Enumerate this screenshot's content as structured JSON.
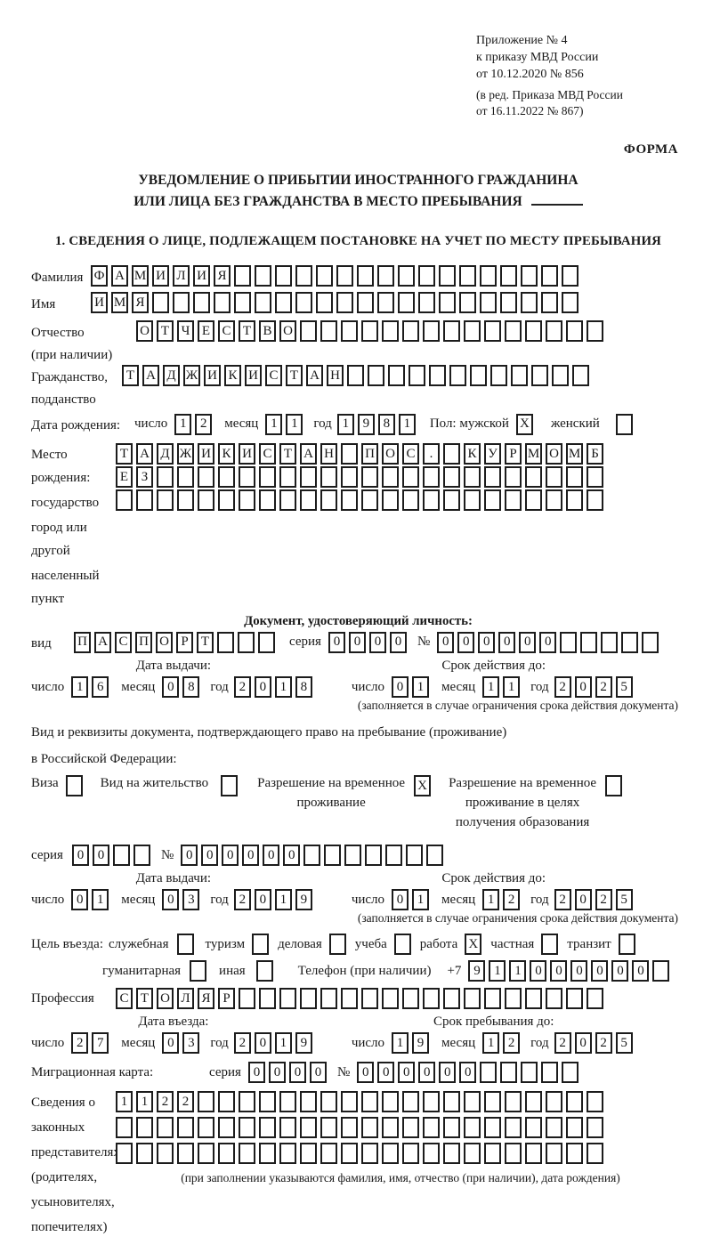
{
  "doc": {
    "annex": [
      "Приложение № 4",
      "к приказу МВД России",
      "от 10.12.2020 № 856"
    ],
    "annex_note": [
      "(в ред. Приказа МВД России",
      "от 16.11.2022 № 867)"
    ],
    "forma": "ФОРМА",
    "title1": "УВЕДОМЛЕНИЕ О ПРИБЫТИИ ИНОСТРАННОГО ГРАЖДАНИНА",
    "title2": "ИЛИ ЛИЦА БЕЗ ГРАЖДАНСТВА В МЕСТО ПРЕБЫВАНИЯ",
    "section1": "1. СВЕДЕНИЯ О ЛИЦЕ, ПОДЛЕЖАЩЕМ ПОСТАНОВКЕ НА УЧЕТ ПО МЕСТУ ПРЕБЫВАНИЯ",
    "ink_color": "#1a1a1a"
  },
  "fields": {
    "surname": {
      "label": "Фамилия",
      "cells": {
        "value": "ФАМИЛИЯ",
        "length": 24
      }
    },
    "firstname": {
      "label": "Имя",
      "cells": {
        "value": "ИМЯ",
        "length": 24
      }
    },
    "patronymic": {
      "label": "Отчество",
      "label2": "(при наличии)",
      "cells": {
        "value": "ОТЧЕСТВО",
        "length": 23
      }
    },
    "citizenship": {
      "label": "Гражданство,",
      "label2": "подданство",
      "cells": {
        "value": "ТАДЖИКИСТАН",
        "length": 23
      }
    },
    "birth_date": {
      "label": "Дата рождения:",
      "day_label": "число",
      "day": {
        "value": "12",
        "length": 2
      },
      "month_label": "месяц",
      "month": {
        "value": "11",
        "length": 2
      },
      "year_label": "год",
      "year": {
        "value": "1981",
        "length": 4
      },
      "sex_label": "Пол: мужской",
      "male": {
        "value": "X",
        "length": 1
      },
      "female_label": "женский",
      "female": {
        "value": "",
        "length": 1
      }
    },
    "birth_place": {
      "labels": [
        "Место рождения:",
        "государство",
        "город или другой",
        "населенный пункт"
      ],
      "row1": {
        "value": "ТАДЖИКИСТАН ПОС. КУРМОМБ",
        "length": 24
      },
      "row2": {
        "value": "ЕЗ",
        "length": 24
      },
      "row3": {
        "value": "",
        "length": 24
      }
    },
    "identity_doc": {
      "heading": "Документ, удостоверяющий личность:",
      "vid_label": "вид",
      "vid": {
        "value": "ПАСПОРТ",
        "length": 10
      },
      "seria_label": "серия",
      "seria": {
        "value": "0000",
        "length": 4
      },
      "num_label": "№",
      "num": {
        "value": "000000",
        "length": 11
      }
    },
    "issue1": {
      "heading": "Дата выдачи:",
      "day_label": "число",
      "day": {
        "value": "16",
        "length": 2
      },
      "month_label": "месяц",
      "month": {
        "value": "08",
        "length": 2
      },
      "year_label": "год",
      "year": {
        "value": "2018",
        "length": 4
      }
    },
    "valid1": {
      "heading": "Срок действия до:",
      "day_label": "число",
      "day": {
        "value": "01",
        "length": 2
      },
      "month_label": "месяц",
      "month": {
        "value": "11",
        "length": 2
      },
      "year_label": "год",
      "year": {
        "value": "2025",
        "length": 4
      },
      "note": "(заполняется в случае ограничения срока действия документа)"
    },
    "stay_doc": {
      "line1": "Вид и реквизиты документа, подтверждающего право на пребывание (проживание)",
      "line2": "в Российской Федерации:",
      "visa_label": "Виза",
      "visa": {
        "value": "",
        "length": 1
      },
      "residence_label": "Вид на жительство",
      "residence": {
        "value": "",
        "length": 1
      },
      "temp_label1": "Разрешение на временное",
      "temp_label2": "проживание",
      "temp": {
        "value": "X",
        "length": 1
      },
      "edu_label1": "Разрешение на временное",
      "edu_label2": "проживание в целях",
      "edu_label3": "получения образования",
      "edu": {
        "value": "",
        "length": 1
      }
    },
    "permit": {
      "seria_label": "серия",
      "seria": {
        "value": "00",
        "length": 4
      },
      "num_label": "№",
      "num": {
        "value": "000000",
        "length": 13
      }
    },
    "issue2": {
      "heading": "Дата выдачи:",
      "day_label": "число",
      "day": {
        "value": "01",
        "length": 2
      },
      "month_label": "месяц",
      "month": {
        "value": "03",
        "length": 2
      },
      "year_label": "год",
      "year": {
        "value": "2019",
        "length": 4
      }
    },
    "valid2": {
      "heading": "Срок действия до:",
      "day_label": "число",
      "day": {
        "value": "01",
        "length": 2
      },
      "month_label": "месяц",
      "month": {
        "value": "12",
        "length": 2
      },
      "year_label": "год",
      "year": {
        "value": "2025",
        "length": 4
      },
      "note": "(заполняется в случае ограничения срока действия документа)"
    },
    "purpose": {
      "label": "Цель въезда:",
      "row1": [
        {
          "label": "служебная",
          "box": {
            "value": "",
            "length": 1
          }
        },
        {
          "label": "туризм",
          "box": {
            "value": "",
            "length": 1
          }
        },
        {
          "label": "деловая",
          "box": {
            "value": "",
            "length": 1
          }
        },
        {
          "label": "учеба",
          "box": {
            "value": "",
            "length": 1
          }
        },
        {
          "label": "работа",
          "box": {
            "value": "X",
            "length": 1
          }
        },
        {
          "label": "частная",
          "box": {
            "value": "",
            "length": 1
          }
        },
        {
          "label": "транзит",
          "box": {
            "value": "",
            "length": 1
          }
        }
      ],
      "row2": [
        {
          "label": "гуманитарная",
          "box": {
            "value": "",
            "length": 1
          }
        },
        {
          "label": "иная",
          "box": {
            "value": "",
            "length": 1
          }
        }
      ]
    },
    "phone": {
      "label": "Телефон (при наличии)",
      "prefix": "+7",
      "cells": {
        "value": "911000000",
        "length": 10
      }
    },
    "profession": {
      "label": "Профессия",
      "cells": {
        "value": "СТОЛЯР",
        "length": 24
      }
    },
    "entry": {
      "heading": "Дата въезда:",
      "day_label": "число",
      "day": {
        "value": "27",
        "length": 2
      },
      "month_label": "месяц",
      "month": {
        "value": "03",
        "length": 2
      },
      "year_label": "год",
      "year": {
        "value": "2019",
        "length": 4
      }
    },
    "stay_until": {
      "heading": "Срок пребывания до:",
      "day_label": "число",
      "day": {
        "value": "19",
        "length": 2
      },
      "month_label": "месяц",
      "month": {
        "value": "12",
        "length": 2
      },
      "year_label": "год",
      "year": {
        "value": "2025",
        "length": 4
      }
    },
    "migration_card": {
      "label": "Миграционная карта:",
      "seria_label": "серия",
      "seria": {
        "value": "0000",
        "length": 4
      },
      "num_label": "№",
      "num": {
        "value": "000000",
        "length": 11
      }
    },
    "representatives": {
      "labels": [
        "Сведения о",
        "законных",
        "представителях",
        "(родителях,",
        "усыновителях,",
        "попечителях)"
      ],
      "row1": {
        "value": "1122",
        "length": 24
      },
      "row2": {
        "value": "",
        "length": 24
      },
      "row3": {
        "value": "",
        "length": 24
      },
      "note": "(при заполнении указываются фамилия, имя, отчество (при наличии), дата рождения)"
    }
  }
}
